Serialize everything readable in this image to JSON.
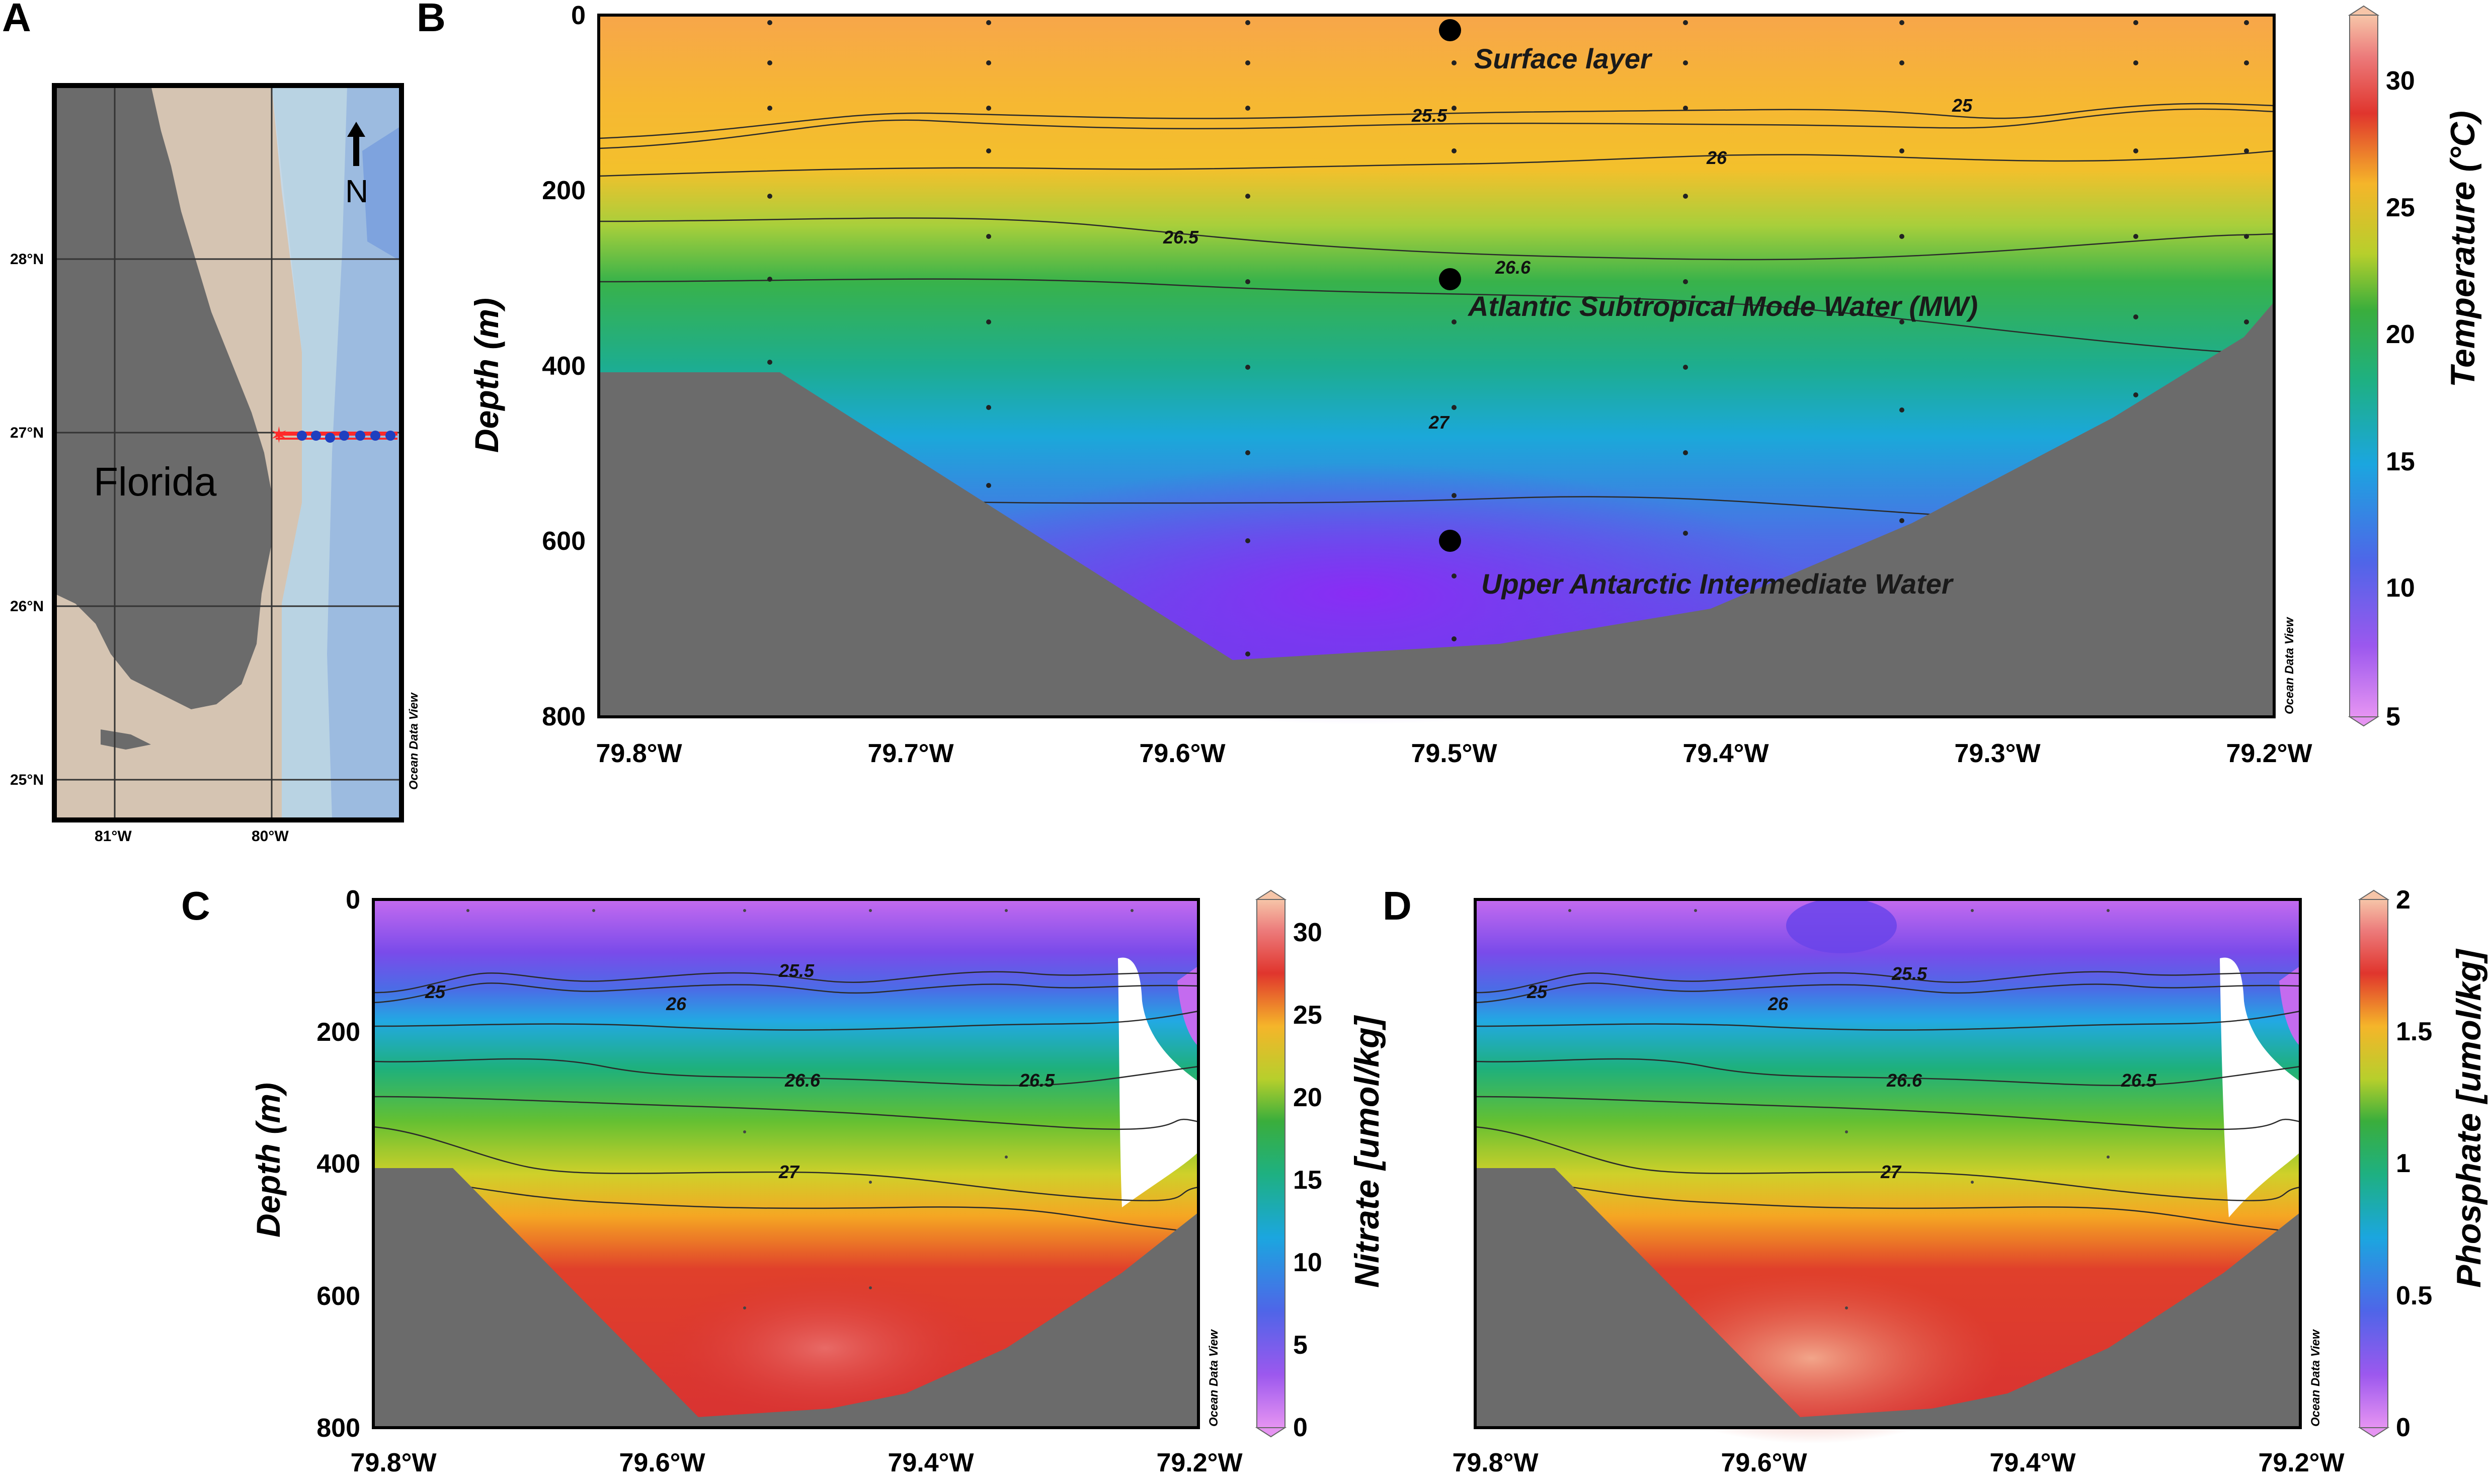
{
  "panels": {
    "a": "A",
    "b": "B",
    "c": "C",
    "d": "D"
  },
  "map": {
    "land_label": "Florida",
    "north_label": "N",
    "lat_labels": [
      "28°N",
      "27°N",
      "26°N",
      "25°N"
    ],
    "lon_labels": [
      "81°W",
      "80°W"
    ],
    "credit": "Ocean Data View",
    "colors": {
      "land": "#6b6b6b",
      "shelf": "#d5c4b2",
      "ocean_light": "#b9d3e3",
      "ocean_deep": "#8fb1d9",
      "transect": "#ff2a2a",
      "stations": "#1f3fbf"
    }
  },
  "chart_data": [
    {
      "type": "heatmap",
      "panel": "B",
      "title": "",
      "xlabel": "",
      "ylabel": "Depth (m)",
      "x_ticks": [
        "79.8°W",
        "79.7°W",
        "79.6°W",
        "79.5°W",
        "79.4°W",
        "79.3°W",
        "79.2°W"
      ],
      "y_ticks": [
        "0",
        "200",
        "400",
        "600",
        "800"
      ],
      "xlim": [
        -79.82,
        -79.2
      ],
      "ylim": [
        800,
        0
      ],
      "variable": "Temperature (°C)",
      "colorbar_ticks": [
        "5",
        "10",
        "15",
        "20",
        "25",
        "30"
      ],
      "colorbar_range": [
        5,
        32
      ],
      "isopycnals": [
        "25",
        "25.5",
        "26",
        "26.5",
        "26.6",
        "27"
      ],
      "isopycnal_depths_m": {
        "25.5": 120,
        "26": 170,
        "26.5": 245,
        "26.6": 280,
        "27": 450
      },
      "annotations": [
        {
          "text": "Surface layer",
          "depth_m": 15
        },
        {
          "text": "Atlantic Subtropical Mode Water (MW)",
          "depth_m": 300
        },
        {
          "text": "Upper Antarctic Intermediate Water",
          "depth_m": 600
        }
      ],
      "credit": "Ocean Data View"
    },
    {
      "type": "heatmap",
      "panel": "C",
      "ylabel": "Depth (m)",
      "x_ticks": [
        "79.8°W",
        "79.6°W",
        "79.4°W",
        "79.2°W"
      ],
      "y_ticks": [
        "0",
        "200",
        "400",
        "600",
        "800"
      ],
      "xlim": [
        -79.82,
        -79.2
      ],
      "ylim": [
        800,
        0
      ],
      "variable": "Nitrate [umol/kg]",
      "colorbar_ticks": [
        "0",
        "5",
        "10",
        "15",
        "20",
        "25",
        "30"
      ],
      "colorbar_range": [
        0,
        32
      ],
      "isopycnals": [
        "25",
        "25.5",
        "26",
        "26.6",
        "26.5",
        "27"
      ],
      "credit": "Ocean Data View"
    },
    {
      "type": "heatmap",
      "panel": "D",
      "ylabel": "",
      "x_ticks": [
        "79.8°W",
        "79.6°W",
        "79.4°W",
        "79.2°W"
      ],
      "y_ticks": [],
      "xlim": [
        -79.82,
        -79.2
      ],
      "ylim": [
        800,
        0
      ],
      "variable": "Phosphate [umol/kg]",
      "colorbar_ticks": [
        "0",
        "0.5",
        "1",
        "1.5",
        "2"
      ],
      "colorbar_range": [
        0,
        2
      ],
      "isopycnals": [
        "25",
        "25.5",
        "26",
        "26.6",
        "26.5",
        "27"
      ],
      "credit": "Ocean Data View"
    }
  ]
}
